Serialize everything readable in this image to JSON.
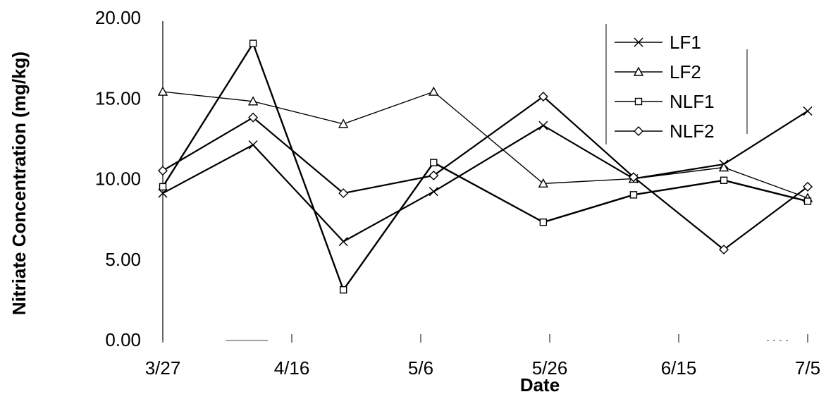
{
  "chart_data": {
    "type": "line",
    "title": "",
    "xlabel": "Date",
    "ylabel": "Nitriate Concentration (mg/kg)",
    "x_axis": {
      "ticks": [
        "3/27",
        "4/16",
        "5/6",
        "5/26",
        "6/15",
        "7/5"
      ],
      "unit": "date"
    },
    "y_axis": {
      "range": [
        0,
        20
      ],
      "ticks": [
        "0.00",
        "5.00",
        "10.00",
        "15.00",
        "20.00"
      ]
    },
    "grid": false,
    "legend_position": "top-right",
    "x": [
      "3/27",
      "4/10",
      "4/24",
      "5/8",
      "5/25",
      "6/8",
      "6/22",
      "7/5"
    ],
    "series": [
      {
        "name": "LF1",
        "marker": "x",
        "values": [
          9.1,
          12.1,
          6.1,
          9.2,
          13.3,
          10.0,
          10.9,
          14.2
        ]
      },
      {
        "name": "LF2",
        "marker": "triangle",
        "values": [
          15.4,
          14.8,
          13.4,
          15.4,
          9.7,
          10.0,
          10.7,
          8.8
        ]
      },
      {
        "name": "NLF1",
        "marker": "square",
        "values": [
          9.5,
          18.4,
          3.1,
          11.0,
          7.3,
          9.0,
          9.9,
          8.6
        ]
      },
      {
        "name": "NLF2",
        "marker": "diamond",
        "values": [
          10.5,
          13.8,
          9.1,
          10.2,
          15.1,
          10.1,
          5.6,
          9.5
        ]
      }
    ]
  }
}
